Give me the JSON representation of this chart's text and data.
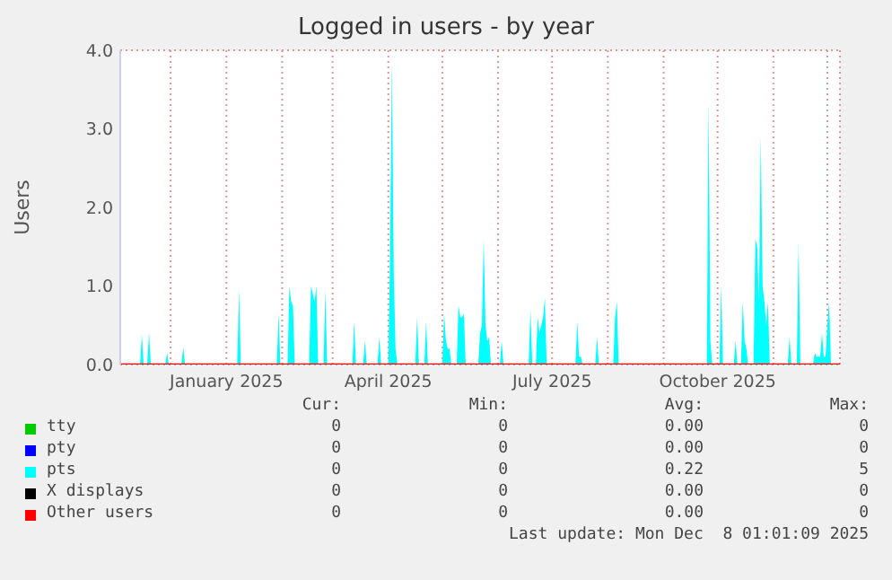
{
  "chart_data": {
    "type": "area",
    "title": "Logged in users - by year",
    "ylabel": "Users",
    "xlim": [
      "2024-11-03",
      "2025-12-08"
    ],
    "xticks": [
      {
        "value": "2024-12",
        "label": null
      },
      {
        "value": "2025-01",
        "label": "January 2025"
      },
      {
        "value": "2025-02",
        "label": null
      },
      {
        "value": "2025-03",
        "label": null
      },
      {
        "value": "2025-04",
        "label": "April 2025"
      },
      {
        "value": "2025-05",
        "label": null
      },
      {
        "value": "2025-06",
        "label": null
      },
      {
        "value": "2025-07",
        "label": "July 2025"
      },
      {
        "value": "2025-08",
        "label": null
      },
      {
        "value": "2025-09",
        "label": null
      },
      {
        "value": "2025-10",
        "label": "October 2025"
      },
      {
        "value": "2025-11",
        "label": null
      },
      {
        "value": "2025-12",
        "label": null
      }
    ],
    "ylim": [
      0,
      4
    ],
    "yticks": [
      {
        "value": 0,
        "label": "0.0"
      },
      {
        "value": 1,
        "label": "1.0"
      },
      {
        "value": 2,
        "label": "2.0"
      },
      {
        "value": 3,
        "label": "3.0"
      },
      {
        "value": 4,
        "label": "4.0"
      }
    ],
    "grid": true,
    "legend": "bottom",
    "series": [
      {
        "name": "tty",
        "type": "line",
        "color": "#00cc00"
      },
      {
        "name": "pty",
        "type": "line",
        "color": "#0000ff"
      },
      {
        "name": "pts",
        "color": "#00ffff",
        "x": [
          "2024-11-03",
          "2024-11-14",
          "2024-11-15",
          "2024-11-16",
          "2024-11-18",
          "2024-11-19",
          "2024-11-20",
          "2024-11-28",
          "2024-11-29",
          "2024-11-30",
          "2024-12-07",
          "2024-12-08",
          "2024-12-09",
          "2025-01-07",
          "2025-01-08",
          "2025-01-09",
          "2025-01-29",
          "2025-01-30",
          "2025-01-31",
          "2025-02-04",
          "2025-02-05",
          "2025-02-06",
          "2025-02-07",
          "2025-02-08",
          "2025-02-16",
          "2025-02-17",
          "2025-02-18",
          "2025-02-19",
          "2025-02-20",
          "2025-02-21",
          "2025-02-24",
          "2025-02-25",
          "2025-02-26",
          "2025-03-12",
          "2025-03-13",
          "2025-03-14",
          "2025-03-18",
          "2025-03-19",
          "2025-03-20",
          "2025-03-26",
          "2025-03-27",
          "2025-03-28",
          "2025-04-01",
          "2025-04-02",
          "2025-04-03",
          "2025-04-04",
          "2025-04-05",
          "2025-04-06",
          "2025-04-16",
          "2025-04-17",
          "2025-04-18",
          "2025-04-21",
          "2025-04-22",
          "2025-04-23",
          "2025-05-01",
          "2025-05-02",
          "2025-05-03",
          "2025-05-04",
          "2025-05-05",
          "2025-05-06",
          "2025-05-09",
          "2025-05-10",
          "2025-05-11",
          "2025-05-12",
          "2025-05-13",
          "2025-05-14",
          "2025-05-21",
          "2025-05-22",
          "2025-05-23",
          "2025-05-24",
          "2025-05-25",
          "2025-05-26",
          "2025-05-27",
          "2025-05-28",
          "2025-06-02",
          "2025-06-03",
          "2025-06-04",
          "2025-06-18",
          "2025-06-19",
          "2025-06-20",
          "2025-06-22",
          "2025-06-23",
          "2025-06-24",
          "2025-06-25",
          "2025-06-26",
          "2025-06-27",
          "2025-06-28",
          "2025-07-14",
          "2025-07-15",
          "2025-07-16",
          "2025-07-17",
          "2025-07-18",
          "2025-07-25",
          "2025-07-26",
          "2025-07-27",
          "2025-08-04",
          "2025-08-05",
          "2025-08-06",
          "2025-08-07",
          "2025-09-25",
          "2025-09-26",
          "2025-09-27",
          "2025-09-28",
          "2025-10-02",
          "2025-10-03",
          "2025-10-04",
          "2025-10-10",
          "2025-10-11",
          "2025-10-12",
          "2025-10-14",
          "2025-10-15",
          "2025-10-16",
          "2025-10-17",
          "2025-10-18",
          "2025-10-21",
          "2025-10-22",
          "2025-10-23",
          "2025-10-24",
          "2025-10-25",
          "2025-10-26",
          "2025-10-27",
          "2025-10-28",
          "2025-10-29",
          "2025-10-30",
          "2025-11-09",
          "2025-11-10",
          "2025-11-11",
          "2025-11-14",
          "2025-11-15",
          "2025-11-16",
          "2025-11-23",
          "2025-11-24",
          "2025-11-25",
          "2025-11-26",
          "2025-11-27",
          "2025-11-28",
          "2025-11-29",
          "2025-11-30",
          "2025-12-01",
          "2025-12-02",
          "2025-12-03",
          "2025-12-08"
        ],
        "values": [
          0,
          0,
          0.38,
          0,
          0,
          0.4,
          0,
          0,
          0.15,
          0,
          0,
          0.22,
          0,
          0,
          0.95,
          0,
          0,
          0.65,
          0,
          0,
          1.0,
          0.8,
          0.75,
          0,
          0,
          1.0,
          0.9,
          0.8,
          1.0,
          0,
          0,
          0.95,
          0,
          0,
          0.55,
          0,
          0,
          0.3,
          0,
          0,
          0.35,
          0,
          0,
          1.5,
          3.85,
          1.2,
          0.2,
          0,
          0,
          0.6,
          0,
          0,
          0.55,
          0,
          0,
          0.65,
          0.3,
          0.2,
          0.2,
          0,
          0,
          0.75,
          0.6,
          0.6,
          0.65,
          0,
          0,
          0.4,
          0.5,
          1.6,
          0.5,
          0.3,
          0.35,
          0,
          0,
          0.3,
          0,
          0,
          0.7,
          0,
          0,
          0.6,
          0.4,
          0.5,
          0.6,
          0.85,
          0,
          0,
          0.55,
          0.1,
          0.1,
          0,
          0,
          0.35,
          0,
          0,
          0.6,
          0.8,
          0,
          0,
          3.35,
          0.3,
          0,
          0,
          1.0,
          0,
          0,
          0.3,
          0,
          0,
          0.8,
          0.3,
          0.2,
          0,
          0,
          1.6,
          1.5,
          0.8,
          2.9,
          1.0,
          0.8,
          0.5,
          0.8,
          0,
          0,
          0.35,
          0,
          0,
          1.55,
          0,
          0,
          0.15,
          0.1,
          0.1,
          0.1,
          0.4,
          0.1,
          0.1,
          0.5,
          0.8,
          0,
          0
        ]
      },
      {
        "name": "X displays",
        "type": "line",
        "color": "#000000"
      },
      {
        "name": "Other users",
        "type": "line",
        "color": "#ff0000",
        "x": [
          "2024-11-03",
          "2025-12-08"
        ],
        "values": [
          0,
          0
        ]
      }
    ],
    "annotations": [
      "Cur:",
      "Min:",
      "Avg:",
      "Max:",
      "0",
      "0",
      "0.00",
      "0",
      "0",
      "0",
      "0.00",
      "0",
      "0",
      "0",
      "0.22",
      "5",
      "0",
      "0",
      "0.00",
      "0",
      "0",
      "0",
      "0.00",
      "0",
      "Last update: Mon Dec  8 01:01:09 2025"
    ]
  }
}
